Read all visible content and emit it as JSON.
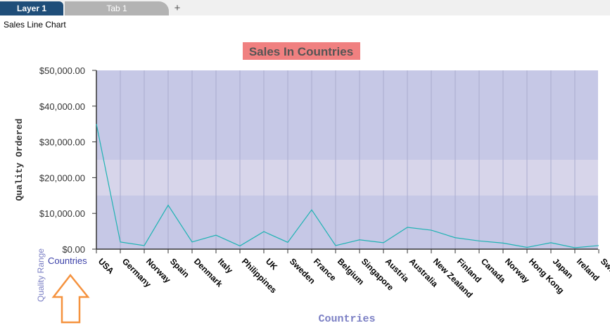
{
  "tabs": [
    {
      "label": "Layer 1",
      "active": true
    },
    {
      "label": "Tab 1",
      "active": false
    }
  ],
  "add_tab_label": "+",
  "panel_title": "Sales Line Chart",
  "annotation": {
    "range_label": "Quality Range",
    "axis_label": "Countries",
    "arrow_color": "#f5923e"
  },
  "colors": {
    "plot_bg": "#c6c8e6",
    "band_bg": "#d7d5ea",
    "line": "#1fb3b3",
    "title_bg": "#f08080",
    "title_text": "#555555",
    "axis_title": "#333333",
    "xlabel": "#7b7fc4"
  },
  "chart_data": {
    "type": "line",
    "title": "Sales In Countries",
    "xlabel": "Countries",
    "ylabel": "Quality Ordered",
    "ylim": [
      0,
      50000
    ],
    "yticks": [
      "$0.00",
      "$10,000.00",
      "$20,000.00",
      "$30,000.00",
      "$40,000.00",
      "$50,000.00"
    ],
    "grid": true,
    "categories": [
      "USA",
      "Germany",
      "Norway",
      "Spain",
      "Denmark",
      "Italy",
      "Philippines",
      "UK",
      "Sweden",
      "France",
      "Belgium",
      "Singapore",
      "Austria",
      "Australia",
      "New Zealand",
      "Finland",
      "Canada",
      "Norway",
      "Hong Kong",
      "Japan",
      "Ireland",
      "Switzerland"
    ],
    "values": [
      35000,
      2000,
      1000,
      12300,
      2000,
      3900,
      900,
      4900,
      1900,
      11000,
      1000,
      2600,
      1800,
      6100,
      5300,
      3200,
      2300,
      1700,
      500,
      1800,
      400,
      1000
    ]
  }
}
